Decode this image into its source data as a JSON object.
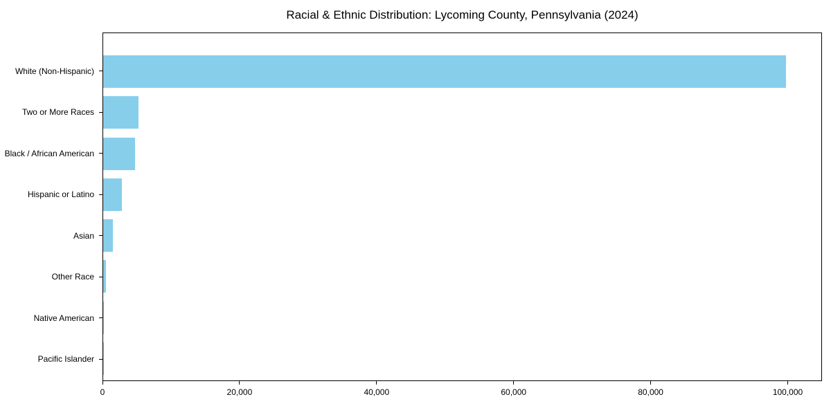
{
  "chart_data": {
    "type": "bar",
    "orientation": "horizontal",
    "title": "Racial & Ethnic Distribution: Lycoming County, Pennsylvania (2024)",
    "categories": [
      "White (Non-Hispanic)",
      "Two or More Races",
      "Black / African American",
      "Hispanic or Latino",
      "Asian",
      "Other Race",
      "Native American",
      "Pacific Islander"
    ],
    "values": [
      99800,
      5200,
      4700,
      2700,
      1400,
      400,
      100,
      30
    ],
    "xlabel": "",
    "ylabel": "",
    "xlim": [
      0,
      105000
    ],
    "x_ticks": [
      0,
      20000,
      40000,
      60000,
      80000,
      100000
    ],
    "x_tick_labels": [
      "0",
      "20,000",
      "40,000",
      "60,000",
      "80,000",
      "100,000"
    ],
    "grid": false,
    "legend_position": "none",
    "bar_color": "#87CEEB",
    "axis_color": "#000000",
    "background_color": "#FFFFFF"
  }
}
